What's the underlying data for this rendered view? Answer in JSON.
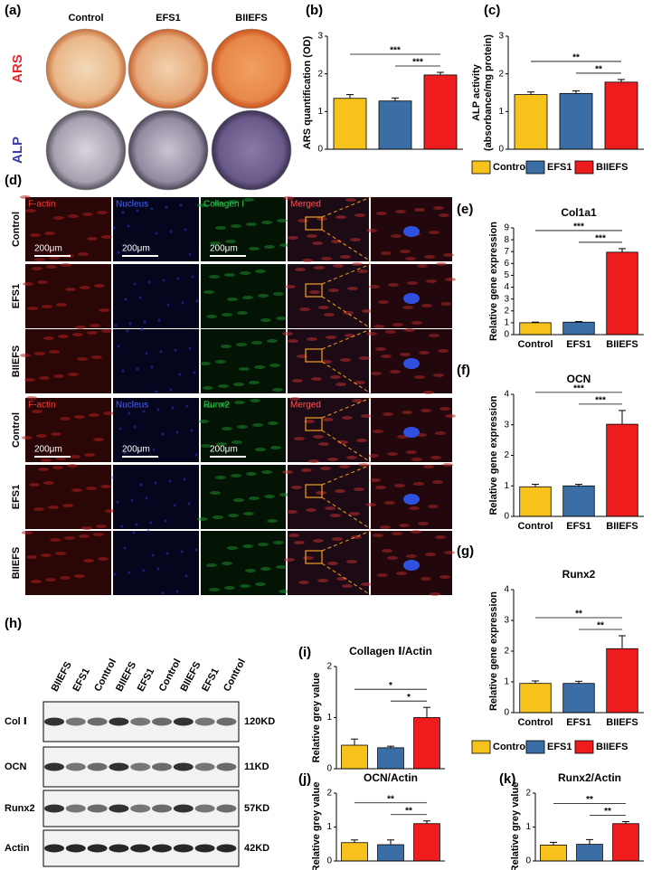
{
  "panel_labels": [
    "(a)",
    "(b)",
    "(c)",
    "(d)",
    "(e)",
    "(f)",
    "(g)",
    "(h)",
    "(i)",
    "(j)",
    "(k)"
  ],
  "stain": {
    "columns": [
      "Control",
      "EFS1",
      "BIIEFS"
    ],
    "rows": [
      "ARS",
      "ALP"
    ]
  },
  "legend_top": [
    "Control",
    "EFS1",
    "BIIEFS"
  ],
  "legend_bottom": [
    "Control",
    "EFS1",
    "BIIEFS"
  ],
  "immuno": [
    {
      "channels": [
        "F-actin",
        "Nucleus",
        "Collagen Ⅰ",
        "Merged"
      ],
      "rows": [
        "Control",
        "EFS1",
        "BIIEFS"
      ],
      "scale_bars": [
        "200μm",
        "200μm",
        "200μm"
      ]
    },
    {
      "channels": [
        "F-actin",
        "Nucleus",
        "Runx2",
        "Merged"
      ],
      "rows": [
        "Control",
        "EFS1",
        "BIIEFS"
      ],
      "scale_bars": [
        "200μm",
        "200μm",
        "200μm"
      ]
    }
  ],
  "blot": {
    "lanes": [
      "BIIEFS",
      "EFS1",
      "Control",
      "BIIEFS",
      "EFS1",
      "Control",
      "BIIEFS",
      "EFS1",
      "Control"
    ],
    "rows": [
      {
        "name": "Col Ⅰ",
        "size": "120KD"
      },
      {
        "name": "OCN",
        "size": "11KD"
      },
      {
        "name": "Runx2",
        "size": "57KD"
      },
      {
        "name": "Actin",
        "size": "42KD"
      }
    ]
  },
  "chart_data": [
    {
      "type": "bar",
      "ylabel": [
        "ARS quantification (OD)"
      ],
      "values": [
        1.35,
        1.28,
        1.97
      ],
      "errors": [
        0.1,
        0.08,
        0.07
      ],
      "colors": [
        "#f7c21b",
        "#3a6ea5",
        "#ee1c1c"
      ],
      "ylim": [
        0,
        3
      ],
      "yticks": [
        0,
        1,
        2,
        3
      ],
      "significance": [
        {
          "from": 0,
          "to": 2,
          "label": "***"
        },
        {
          "from": 1,
          "to": 2,
          "label": "***"
        }
      ]
    },
    {
      "type": "bar",
      "ylabel": [
        "ALP activity",
        "(absorbance/mg protein)"
      ],
      "values": [
        1.45,
        1.48,
        1.78
      ],
      "errors": [
        0.07,
        0.07,
        0.07
      ],
      "colors": [
        "#f7c21b",
        "#3a6ea5",
        "#ee1c1c"
      ],
      "ylim": [
        0,
        3
      ],
      "yticks": [
        0,
        1,
        2,
        3
      ],
      "significance": [
        {
          "from": 0,
          "to": 2,
          "label": "**"
        },
        {
          "from": 1,
          "to": 2,
          "label": "**"
        }
      ]
    },
    {
      "type": "bar",
      "title": "Col1a1",
      "ylabel": [
        "Relative gene expression"
      ],
      "categories": [
        "Control",
        "EFS1",
        "BIIEFS"
      ],
      "values": [
        1,
        1.05,
        6.95
      ],
      "errors": [
        0.05,
        0.05,
        0.3
      ],
      "colors": [
        "#f7c21b",
        "#3a6ea5",
        "#ee1c1c"
      ],
      "ylim": [
        0,
        9
      ],
      "yticks": [
        0,
        1,
        2,
        3,
        4,
        5,
        6,
        7,
        8,
        9
      ],
      "significance": [
        {
          "from": 0,
          "to": 2,
          "label": "***"
        },
        {
          "from": 1,
          "to": 2,
          "label": "***"
        }
      ]
    },
    {
      "type": "bar",
      "title": "OCN",
      "ylabel": [
        "Relative gene expression"
      ],
      "categories": [
        "Control",
        "EFS1",
        "BIIEFS"
      ],
      "values": [
        0.97,
        1.0,
        3.02
      ],
      "errors": [
        0.08,
        0.05,
        0.45
      ],
      "colors": [
        "#f7c21b",
        "#3a6ea5",
        "#ee1c1c"
      ],
      "ylim": [
        0,
        4
      ],
      "yticks": [
        0,
        1,
        2,
        3,
        4
      ],
      "significance": [
        {
          "from": 0,
          "to": 2,
          "label": "***"
        },
        {
          "from": 1,
          "to": 2,
          "label": "***"
        }
      ]
    },
    {
      "type": "bar",
      "title": "Runx2",
      "ylabel": [
        "Relative gene expression"
      ],
      "categories": [
        "Control",
        "EFS1",
        "BIIEFS"
      ],
      "values": [
        0.95,
        0.95,
        2.08
      ],
      "errors": [
        0.08,
        0.07,
        0.42
      ],
      "colors": [
        "#f7c21b",
        "#3a6ea5",
        "#ee1c1c"
      ],
      "ylim": [
        0,
        4
      ],
      "yticks": [
        0,
        1,
        2,
        3,
        4
      ],
      "significance": [
        {
          "from": 0,
          "to": 2,
          "label": "**"
        },
        {
          "from": 1,
          "to": 2,
          "label": "**"
        }
      ]
    },
    {
      "type": "bar",
      "title": "Collagen Ⅰ/Actin",
      "ylabel": [
        "Relative grey value"
      ],
      "values": [
        0.46,
        0.41,
        1.0
      ],
      "errors": [
        0.12,
        0.03,
        0.2
      ],
      "colors": [
        "#f7c21b",
        "#3a6ea5",
        "#ee1c1c"
      ],
      "ylim": [
        0,
        2
      ],
      "yticks": [
        0,
        1,
        2
      ],
      "significance": [
        {
          "from": 0,
          "to": 2,
          "label": "*"
        },
        {
          "from": 1,
          "to": 2,
          "label": "*"
        }
      ]
    },
    {
      "type": "bar",
      "title": "OCN/Actin",
      "ylabel": [
        "Relative grey value"
      ],
      "values": [
        0.54,
        0.48,
        1.1
      ],
      "errors": [
        0.08,
        0.14,
        0.08
      ],
      "colors": [
        "#f7c21b",
        "#3a6ea5",
        "#ee1c1c"
      ],
      "ylim": [
        0,
        2
      ],
      "yticks": [
        0,
        1,
        2
      ],
      "significance": [
        {
          "from": 0,
          "to": 2,
          "label": "**"
        },
        {
          "from": 1,
          "to": 2,
          "label": "**"
        }
      ]
    },
    {
      "type": "bar",
      "title": "Runx2/Actin",
      "ylabel": [
        "Relative grey value"
      ],
      "values": [
        0.47,
        0.49,
        1.1
      ],
      "errors": [
        0.08,
        0.14,
        0.06
      ],
      "colors": [
        "#f7c21b",
        "#3a6ea5",
        "#ee1c1c"
      ],
      "ylim": [
        0,
        2
      ],
      "yticks": [
        0,
        1,
        2
      ],
      "significance": [
        {
          "from": 0,
          "to": 2,
          "label": "**"
        },
        {
          "from": 1,
          "to": 2,
          "label": "**"
        }
      ]
    }
  ]
}
